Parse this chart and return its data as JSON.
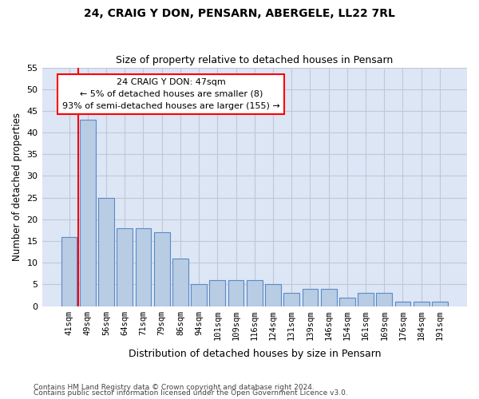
{
  "title": "24, CRAIG Y DON, PENSARN, ABERGELE, LL22 7RL",
  "subtitle": "Size of property relative to detached houses in Pensarn",
  "xlabel": "Distribution of detached houses by size in Pensarn",
  "ylabel": "Number of detached properties",
  "categories": [
    "41sqm",
    "49sqm",
    "56sqm",
    "64sqm",
    "71sqm",
    "79sqm",
    "86sqm",
    "94sqm",
    "101sqm",
    "109sqm",
    "116sqm",
    "124sqm",
    "131sqm",
    "139sqm",
    "146sqm",
    "154sqm",
    "161sqm",
    "169sqm",
    "176sqm",
    "184sqm",
    "191sqm"
  ],
  "values": [
    16,
    43,
    25,
    18,
    18,
    17,
    11,
    5,
    6,
    6,
    6,
    5,
    3,
    4,
    4,
    2,
    3,
    3,
    1,
    1,
    1
  ],
  "bar_color": "#b8cce4",
  "bar_edge_color": "#5b8ac5",
  "grid_color": "#c0c8d8",
  "background_color": "#dce6f5",
  "annotation_box_text": "24 CRAIG Y DON: 47sqm\n← 5% of detached houses are smaller (8)\n93% of semi-detached houses are larger (155) →",
  "annotation_box_color": "white",
  "annotation_line_color": "red",
  "ylim": [
    0,
    55
  ],
  "yticks": [
    0,
    5,
    10,
    15,
    20,
    25,
    30,
    35,
    40,
    45,
    50,
    55
  ],
  "footer1": "Contains HM Land Registry data © Crown copyright and database right 2024.",
  "footer2": "Contains public sector information licensed under the Open Government Licence v3.0."
}
